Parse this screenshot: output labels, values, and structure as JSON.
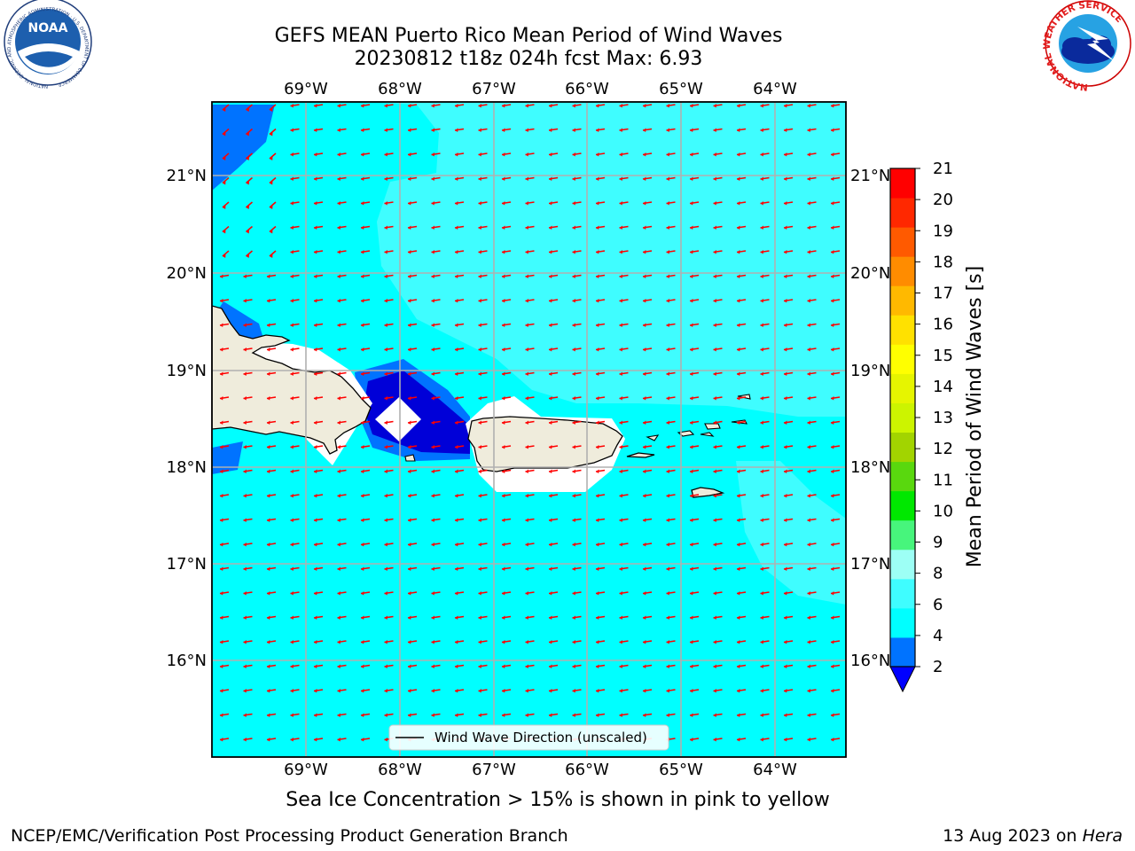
{
  "header": {
    "title_line1": "GEFS MEAN Puerto Rico Mean Period of Wind Waves",
    "title_line2": "20230812 t18z 024h fcst   Max: 6.93"
  },
  "map": {
    "lon_ticks": [
      "69°W",
      "68°W",
      "67°W",
      "66°W",
      "65°W",
      "64°W"
    ],
    "lat_ticks": [
      "21°N",
      "20°N",
      "19°N",
      "18°N",
      "17°N",
      "16°N"
    ],
    "legend_label": "Wind Wave Direction (unscaled)",
    "colors": {
      "ocean": "#00ffff",
      "ocean_light": "#3ffdff",
      "land": "#efecdc",
      "period_2_4": "#0073ff",
      "period_lt_2": "#0000d8",
      "arrow": "#ff0000"
    }
  },
  "colorbar": {
    "title": "Mean Period of Wind Waves [s]",
    "ticks": [
      "2",
      "4",
      "6",
      "8",
      "9",
      "10",
      "11",
      "12",
      "13",
      "14",
      "15",
      "16",
      "17",
      "18",
      "19",
      "20",
      "21"
    ],
    "colors": [
      "#0073ff",
      "#00ffff",
      "#3ffdff",
      "#9dfff5",
      "#47f57c",
      "#00e800",
      "#59d80e",
      "#a2d400",
      "#ccf400",
      "#e6f500",
      "#ffff00",
      "#ffe100",
      "#ffb900",
      "#ff8c00",
      "#ff5a00",
      "#ff2800",
      "#ff0000"
    ],
    "under_color": "#0000ff"
  },
  "logos": {
    "noaa_text": "NOAA",
    "noaa_ring_text": "NATIONAL OCEANIC AND ATMOSPHERIC ADMINISTRATION · U.S. DEPARTMENT OF COMMERCE",
    "nws_ring_text": "NATIONAL WEATHER SERVICE"
  },
  "subtitle": "Sea Ice Concentration > 15% is shown in pink to yellow",
  "footer": {
    "left": "NCEP/EMC/Verification Post Processing Product Generation Branch",
    "right_prefix": "13 Aug 2023 on ",
    "right_host": "Hera"
  }
}
